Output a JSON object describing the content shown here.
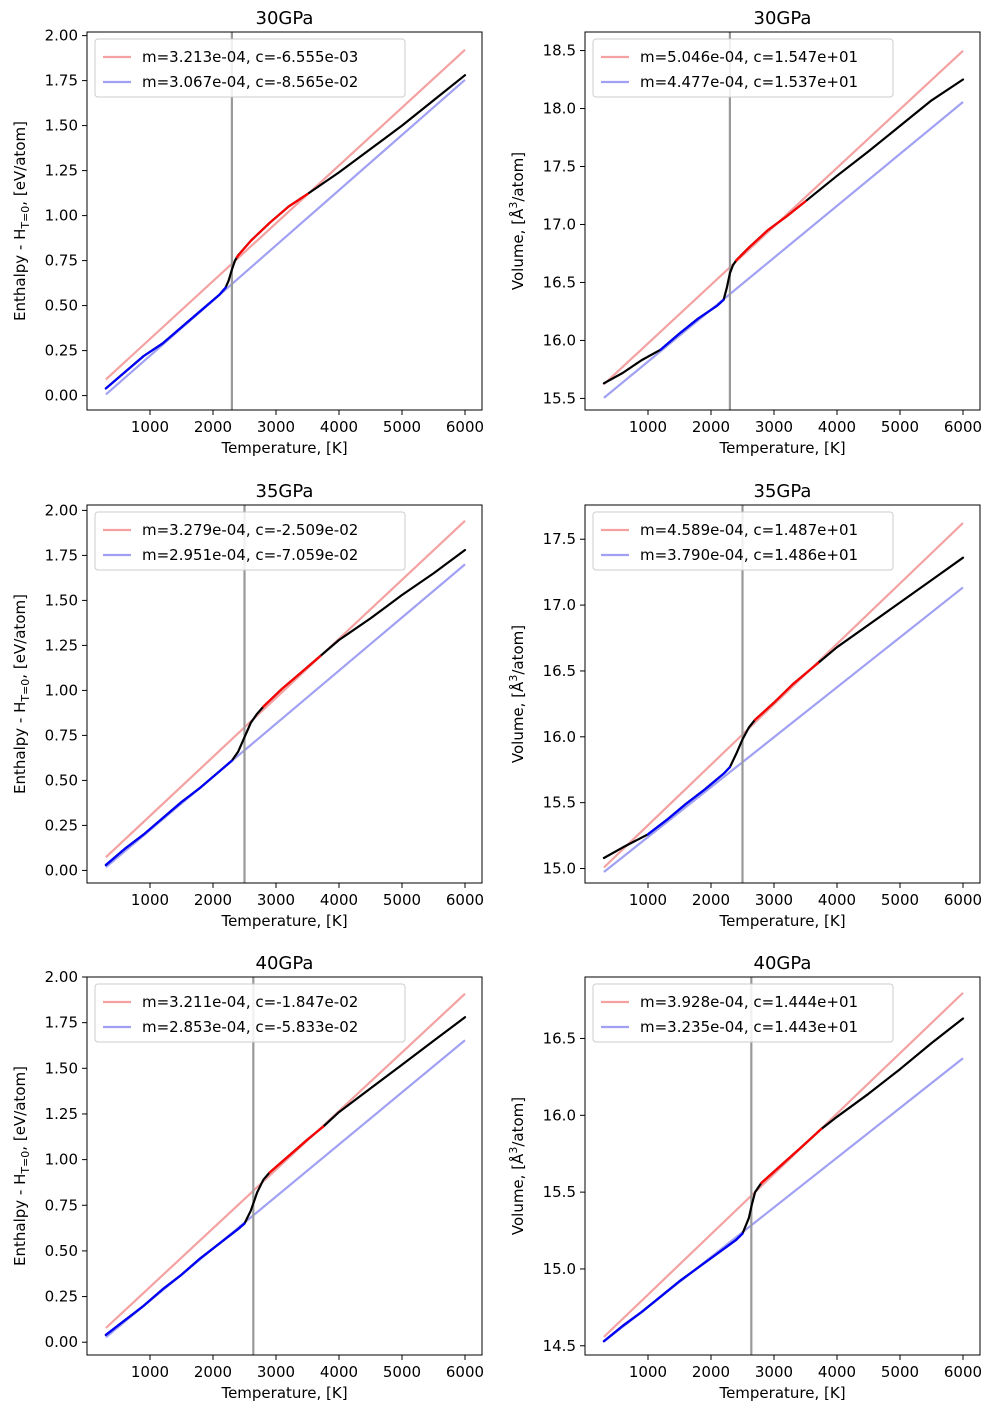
{
  "chart_data": [
    {
      "type": "line",
      "title": "30GPa",
      "xlabel": "Temperature, [K]",
      "ylabel_kind": "enthalpy",
      "ylabel_main": "Enthalpy - H",
      "ylabel_sub": "T=0",
      "ylabel_unit": ", [eV/atom]",
      "xlim": [
        0,
        6270
      ],
      "ylim": [
        -0.08,
        2.02
      ],
      "xticks": [
        1000,
        2000,
        3000,
        4000,
        5000,
        6000
      ],
      "yticks": [
        0.0,
        0.25,
        0.5,
        0.75,
        1.0,
        1.25,
        1.5,
        1.75,
        2.0
      ],
      "ytick_labels": [
        "0.00",
        "0.25",
        "0.50",
        "0.75",
        "1.00",
        "1.25",
        "1.50",
        "1.75",
        "2.00"
      ],
      "transition_T": 2300,
      "legend_location": "upper left",
      "fit_lines": [
        {
          "label": "m=3.213e-04, c=-6.555e-03",
          "m": 0.0003213,
          "c": -0.006555,
          "color": "#f4a1a1",
          "x": [
            300,
            6000
          ]
        },
        {
          "label": "m=3.067e-04, c=-8.565e-02",
          "m": 0.0003067,
          "c": -0.08565,
          "color": "#a1a1f4",
          "x": [
            300,
            6000
          ]
        }
      ],
      "series": [
        {
          "name": "low-T fit region",
          "color": "#0000ff",
          "x": [
            300,
            600,
            900,
            1200,
            1500,
            1800,
            2100,
            2200
          ],
          "y": [
            0.04,
            0.13,
            0.22,
            0.29,
            0.38,
            0.47,
            0.56,
            0.6
          ]
        },
        {
          "name": "high-T fit region",
          "color": "#ff0000",
          "x": [
            2380,
            2600,
            2900,
            3200,
            3500
          ],
          "y": [
            0.77,
            0.86,
            0.96,
            1.05,
            1.12
          ]
        },
        {
          "name": "data",
          "color": "#000000",
          "x": [
            300,
            600,
            900,
            1200,
            1500,
            1800,
            2100,
            2200,
            2250,
            2300,
            2350,
            2400,
            2600,
            2900,
            3200,
            3500,
            4000,
            4500,
            5000,
            5500,
            6000
          ],
          "y": [
            0.04,
            0.13,
            0.22,
            0.29,
            0.38,
            0.47,
            0.56,
            0.6,
            0.64,
            0.7,
            0.75,
            0.78,
            0.86,
            0.96,
            1.05,
            1.12,
            1.24,
            1.37,
            1.5,
            1.64,
            1.78
          ]
        }
      ]
    },
    {
      "type": "line",
      "title": "30GPa",
      "xlabel": "Temperature, [K]",
      "ylabel_kind": "volume",
      "ylabel_main": "Volume, [",
      "ylabel_sup": "3",
      "ylabel_unit": "/atom]",
      "ylabel_symbol": "Å",
      "xlim": [
        0,
        6270
      ],
      "ylim": [
        15.4,
        18.66
      ],
      "xticks": [
        1000,
        2000,
        3000,
        4000,
        5000,
        6000
      ],
      "yticks": [
        15.5,
        16.0,
        16.5,
        17.0,
        17.5,
        18.0,
        18.5
      ],
      "ytick_labels": [
        "15.5",
        "16.0",
        "16.5",
        "17.0",
        "17.5",
        "18.0",
        "18.5"
      ],
      "transition_T": 2300,
      "legend_location": "upper left",
      "fit_lines": [
        {
          "label": "m=5.046e-04, c=1.547e+01",
          "m": 0.0005046,
          "c": 15.47,
          "color": "#f4a1a1",
          "x": [
            300,
            6000
          ]
        },
        {
          "label": "m=4.477e-04, c=1.537e+01",
          "m": 0.0004477,
          "c": 15.37,
          "color": "#a1a1f4",
          "x": [
            300,
            6000
          ]
        }
      ],
      "series": [
        {
          "name": "low-T fit region",
          "color": "#0000ff",
          "x": [
            1200,
            1500,
            1800,
            2100,
            2200
          ],
          "y": [
            15.92,
            16.06,
            16.19,
            16.3,
            16.35
          ]
        },
        {
          "name": "high-T fit region",
          "color": "#ff0000",
          "x": [
            2400,
            2600,
            2900,
            3200,
            3500
          ],
          "y": [
            16.69,
            16.8,
            16.95,
            17.07,
            17.2
          ]
        },
        {
          "name": "data",
          "color": "#000000",
          "x": [
            300,
            600,
            900,
            1200,
            1500,
            1800,
            2100,
            2200,
            2250,
            2300,
            2350,
            2400,
            2600,
            2900,
            3200,
            3500,
            4000,
            4500,
            5000,
            5500,
            6000
          ],
          "y": [
            15.63,
            15.72,
            15.83,
            15.92,
            16.06,
            16.19,
            16.3,
            16.35,
            16.45,
            16.58,
            16.65,
            16.69,
            16.8,
            16.95,
            17.07,
            17.2,
            17.42,
            17.63,
            17.85,
            18.07,
            18.25
          ]
        }
      ]
    },
    {
      "type": "line",
      "title": "35GPa",
      "xlabel": "Temperature, [K]",
      "ylabel_kind": "enthalpy",
      "ylabel_main": "Enthalpy - H",
      "ylabel_sub": "T=0",
      "ylabel_unit": ", [eV/atom]",
      "xlim": [
        0,
        6270
      ],
      "ylim": [
        -0.07,
        2.03
      ],
      "xticks": [
        1000,
        2000,
        3000,
        4000,
        5000,
        6000
      ],
      "yticks": [
        0.0,
        0.25,
        0.5,
        0.75,
        1.0,
        1.25,
        1.5,
        1.75,
        2.0
      ],
      "ytick_labels": [
        "0.00",
        "0.25",
        "0.50",
        "0.75",
        "1.00",
        "1.25",
        "1.50",
        "1.75",
        "2.00"
      ],
      "transition_T": 2500,
      "legend_location": "upper left",
      "fit_lines": [
        {
          "label": "m=3.279e-04, c=-2.509e-02",
          "m": 0.0003279,
          "c": -0.02509,
          "color": "#f4a1a1",
          "x": [
            300,
            6000
          ]
        },
        {
          "label": "m=2.951e-04, c=-7.059e-02",
          "m": 0.0002951,
          "c": -0.07059,
          "color": "#a1a1f4",
          "x": [
            300,
            6000
          ]
        }
      ],
      "series": [
        {
          "name": "low-T fit region",
          "color": "#0000ff",
          "x": [
            300,
            600,
            900,
            1200,
            1500,
            1800,
            2100,
            2300
          ],
          "y": [
            0.03,
            0.12,
            0.2,
            0.29,
            0.38,
            0.46,
            0.55,
            0.61
          ]
        },
        {
          "name": "high-T fit region",
          "color": "#ff0000",
          "x": [
            2800,
            3100,
            3400,
            3700
          ],
          "y": [
            0.91,
            1.01,
            1.1,
            1.19
          ]
        },
        {
          "name": "data",
          "color": "#000000",
          "x": [
            300,
            600,
            900,
            1200,
            1500,
            1800,
            2100,
            2300,
            2400,
            2500,
            2600,
            2700,
            2800,
            3100,
            3400,
            3700,
            4000,
            4500,
            5000,
            5500,
            6000
          ],
          "y": [
            0.03,
            0.12,
            0.2,
            0.29,
            0.38,
            0.46,
            0.55,
            0.61,
            0.66,
            0.74,
            0.82,
            0.87,
            0.91,
            1.01,
            1.1,
            1.19,
            1.28,
            1.4,
            1.53,
            1.65,
            1.78
          ]
        }
      ]
    },
    {
      "type": "line",
      "title": "35GPa",
      "xlabel": "Temperature, [K]",
      "ylabel_kind": "volume",
      "ylabel_main": "Volume, [",
      "ylabel_sup": "3",
      "ylabel_unit": "/atom]",
      "ylabel_symbol": "Å",
      "xlim": [
        0,
        6270
      ],
      "ylim": [
        14.89,
        17.76
      ],
      "xticks": [
        1000,
        2000,
        3000,
        4000,
        5000,
        6000
      ],
      "yticks": [
        15.0,
        15.5,
        16.0,
        16.5,
        17.0,
        17.5
      ],
      "ytick_labels": [
        "15.0",
        "15.5",
        "16.0",
        "16.5",
        "17.0",
        "17.5"
      ],
      "transition_T": 2500,
      "legend_location": "upper left",
      "fit_lines": [
        {
          "label": "m=4.589e-04, c=1.487e+01",
          "m": 0.0004589,
          "c": 14.87,
          "color": "#f4a1a1",
          "x": [
            300,
            6000
          ]
        },
        {
          "label": "m=3.790e-04, c=1.486e+01",
          "m": 0.000379,
          "c": 14.86,
          "color": "#a1a1f4",
          "x": [
            300,
            6000
          ]
        }
      ],
      "series": [
        {
          "name": "low-T fit region",
          "color": "#0000ff",
          "x": [
            1000,
            1300,
            1600,
            1900,
            2200,
            2300
          ],
          "y": [
            15.26,
            15.37,
            15.49,
            15.6,
            15.72,
            15.77
          ]
        },
        {
          "name": "high-T fit region",
          "color": "#ff0000",
          "x": [
            2700,
            3000,
            3300,
            3600,
            3700
          ],
          "y": [
            16.13,
            16.26,
            16.4,
            16.52,
            16.56
          ]
        },
        {
          "name": "data",
          "color": "#000000",
          "x": [
            300,
            600,
            1000,
            1300,
            1600,
            1900,
            2200,
            2300,
            2400,
            2500,
            2600,
            2700,
            3000,
            3300,
            3600,
            3700,
            4000,
            4500,
            5000,
            5500,
            6000
          ],
          "y": [
            15.08,
            15.16,
            15.26,
            15.37,
            15.49,
            15.6,
            15.72,
            15.77,
            15.87,
            15.98,
            16.07,
            16.13,
            16.26,
            16.4,
            16.52,
            16.56,
            16.68,
            16.85,
            17.02,
            17.19,
            17.36
          ]
        }
      ]
    },
    {
      "type": "line",
      "title": "40GPa",
      "xlabel": "Temperature, [K]",
      "ylabel_kind": "enthalpy",
      "ylabel_main": "Enthalpy - H",
      "ylabel_sub": "T=0",
      "ylabel_unit": ", [eV/atom]",
      "xlim": [
        0,
        6270
      ],
      "ylim": [
        -0.07,
        2.0
      ],
      "xticks": [
        1000,
        2000,
        3000,
        4000,
        5000,
        6000
      ],
      "yticks": [
        0.0,
        0.25,
        0.5,
        0.75,
        1.0,
        1.25,
        1.5,
        1.75,
        2.0
      ],
      "ytick_labels": [
        "0.00",
        "0.25",
        "0.50",
        "0.75",
        "1.00",
        "1.25",
        "1.50",
        "1.75",
        "2.00"
      ],
      "transition_T": 2640,
      "legend_location": "upper left",
      "fit_lines": [
        {
          "label": "m=3.211e-04, c=-1.847e-02",
          "m": 0.0003211,
          "c": -0.01847,
          "color": "#f4a1a1",
          "x": [
            300,
            6000
          ]
        },
        {
          "label": "m=2.853e-04, c=-5.833e-02",
          "m": 0.0002853,
          "c": -0.05833,
          "color": "#a1a1f4",
          "x": [
            300,
            6000
          ]
        }
      ],
      "series": [
        {
          "name": "low-T fit region",
          "color": "#0000ff",
          "x": [
            300,
            600,
            900,
            1200,
            1500,
            1800,
            2100,
            2400,
            2500
          ],
          "y": [
            0.04,
            0.12,
            0.2,
            0.29,
            0.37,
            0.46,
            0.54,
            0.62,
            0.65
          ]
        },
        {
          "name": "high-T fit region",
          "color": "#ff0000",
          "x": [
            2900,
            3200,
            3500,
            3750
          ],
          "y": [
            0.93,
            1.02,
            1.11,
            1.18
          ]
        },
        {
          "name": "data",
          "color": "#000000",
          "x": [
            300,
            600,
            900,
            1200,
            1500,
            1800,
            2100,
            2400,
            2500,
            2600,
            2700,
            2800,
            2900,
            3200,
            3500,
            3750,
            4000,
            4500,
            5000,
            5500,
            6000
          ],
          "y": [
            0.04,
            0.12,
            0.2,
            0.29,
            0.37,
            0.46,
            0.54,
            0.62,
            0.65,
            0.72,
            0.82,
            0.89,
            0.93,
            1.02,
            1.11,
            1.18,
            1.26,
            1.39,
            1.52,
            1.65,
            1.78
          ]
        }
      ]
    },
    {
      "type": "line",
      "title": "40GPa",
      "xlabel": "Temperature, [K]",
      "ylabel_kind": "volume",
      "ylabel_main": "Volume, [",
      "ylabel_sup": "3",
      "ylabel_unit": "/atom]",
      "ylabel_symbol": "Å",
      "xlim": [
        0,
        6270
      ],
      "ylim": [
        14.44,
        16.9
      ],
      "xticks": [
        1000,
        2000,
        3000,
        4000,
        5000,
        6000
      ],
      "yticks": [
        14.5,
        15.0,
        15.5,
        16.0,
        16.5
      ],
      "ytick_labels": [
        "14.5",
        "15.0",
        "15.5",
        "16.0",
        "16.5"
      ],
      "transition_T": 2640,
      "legend_location": "upper left",
      "fit_lines": [
        {
          "label": "m=3.928e-04, c=1.444e+01",
          "m": 0.0003928,
          "c": 14.44,
          "color": "#f4a1a1",
          "x": [
            300,
            6000
          ]
        },
        {
          "label": "m=3.235e-04, c=1.443e+01",
          "m": 0.0003235,
          "c": 14.43,
          "color": "#a1a1f4",
          "x": [
            300,
            6000
          ]
        }
      ],
      "series": [
        {
          "name": "low-T fit region",
          "color": "#0000ff",
          "x": [
            300,
            600,
            900,
            1200,
            1500,
            1800,
            2100,
            2400,
            2500
          ],
          "y": [
            14.53,
            14.63,
            14.72,
            14.82,
            14.92,
            15.01,
            15.1,
            15.19,
            15.23
          ]
        },
        {
          "name": "high-T fit region",
          "color": "#ff0000",
          "x": [
            2800,
            3100,
            3400,
            3750
          ],
          "y": [
            15.56,
            15.67,
            15.78,
            15.91
          ]
        },
        {
          "name": "data",
          "color": "#000000",
          "x": [
            300,
            600,
            900,
            1200,
            1500,
            1800,
            2100,
            2400,
            2500,
            2600,
            2650,
            2700,
            2800,
            3100,
            3400,
            3750,
            4000,
            4500,
            5000,
            5500,
            6000
          ],
          "y": [
            14.53,
            14.63,
            14.72,
            14.82,
            14.92,
            15.01,
            15.1,
            15.19,
            15.23,
            15.33,
            15.42,
            15.5,
            15.56,
            15.67,
            15.78,
            15.91,
            15.99,
            16.14,
            16.3,
            16.47,
            16.63
          ]
        }
      ]
    }
  ]
}
